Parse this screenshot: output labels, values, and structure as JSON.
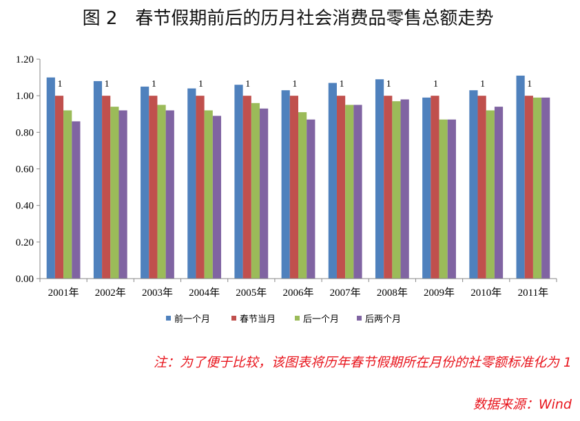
{
  "chart_data": {
    "type": "bar",
    "title": "图 2　春节假期前后的历月社会消费品零售总额走势",
    "categories": [
      "2001年",
      "2002年",
      "2003年",
      "2004年",
      "2005年",
      "2006年",
      "2007年",
      "2008年",
      "2009年",
      "2010年",
      "2011年"
    ],
    "series": [
      {
        "name": "前一个月",
        "color": "#4F81BD",
        "values": [
          1.1,
          1.08,
          1.05,
          1.04,
          1.06,
          1.03,
          1.07,
          1.09,
          0.99,
          1.03,
          1.11
        ]
      },
      {
        "name": "春节当月",
        "color": "#C0504D",
        "values": [
          1.0,
          1.0,
          1.0,
          1.0,
          1.0,
          1.0,
          1.0,
          1.0,
          1.0,
          1.0,
          1.0
        ],
        "labels": [
          "1",
          "1",
          "1",
          "1",
          "1",
          "1",
          "1",
          "1",
          "1",
          "1",
          "1"
        ]
      },
      {
        "name": "后一个月",
        "color": "#9BBB59",
        "values": [
          0.92,
          0.94,
          0.95,
          0.92,
          0.96,
          0.91,
          0.95,
          0.97,
          0.87,
          0.92,
          0.99
        ]
      },
      {
        "name": "后两个月",
        "color": "#8064A2",
        "values": [
          0.86,
          0.92,
          0.92,
          0.89,
          0.93,
          0.87,
          0.95,
          0.98,
          0.87,
          0.94,
          0.99
        ]
      }
    ],
    "ylim": [
      0,
      1.2
    ],
    "yticks": [
      0,
      0.2,
      0.4,
      0.6,
      0.8,
      1.0,
      1.2
    ],
    "ytick_labels": [
      "0.00",
      "0.20",
      "0.40",
      "0.60",
      "0.80",
      "1.00",
      "1.20"
    ],
    "xlabel": "",
    "ylabel": "",
    "grid": false,
    "legend": "bottom",
    "axis_color": "#868686"
  },
  "footnote": {
    "note": "注：为了便于比较，该图表将历年春节假期所在月份的社零额标准化为 1",
    "source": "数据来源：Wind",
    "color": "#E8141C"
  }
}
